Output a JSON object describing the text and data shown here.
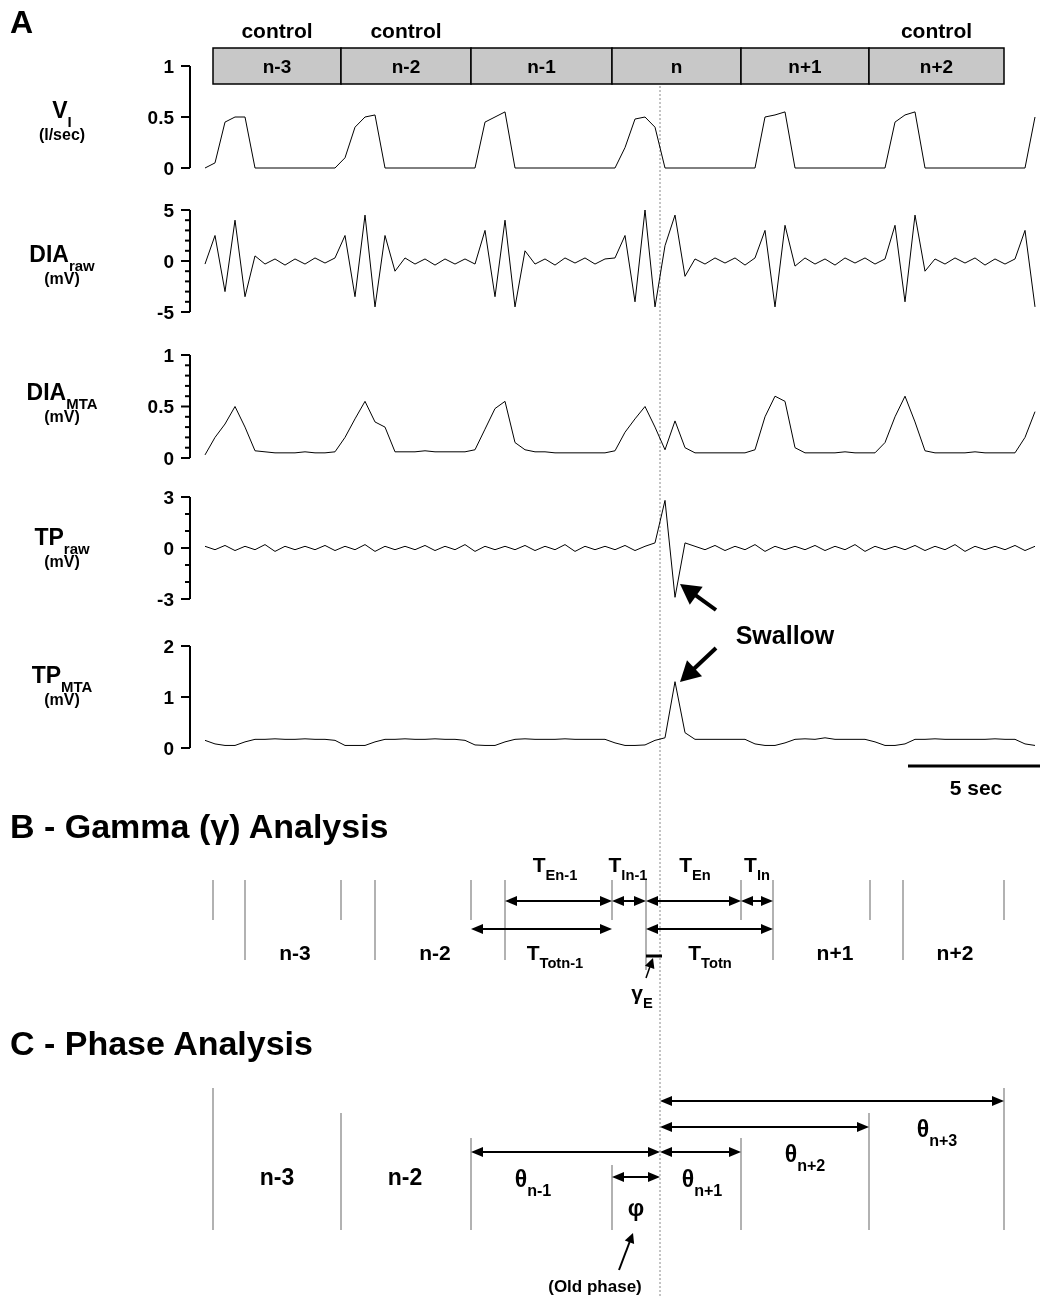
{
  "chart_data": [
    {
      "type": "line",
      "title": "A",
      "ylabel": "V$_{I}$ (l/sec)",
      "tick_labels": "y",
      "color": "#000000",
      "categories": [
        null,
        null,
        null,
        null,
        null,
        null,
        null,
        null,
        null,
        null,
        null,
        null,
        null,
        null,
        null,
        null,
        null,
        null,
        null,
        null,
        null,
        null,
        null,
        null,
        null,
        null,
        null,
        null,
        null,
        null,
        null,
        null,
        null,
        null,
        null,
        null,
        null,
        null,
        null,
        null,
        null,
        null,
        null,
        null,
        null,
        null,
        null,
        null,
        null,
        null,
        null,
        null,
        null,
        null,
        null,
        null,
        null,
        null,
        null,
        null,
        null,
        null,
        null,
        null,
        null,
        null,
        null,
        null,
        null,
        null,
        null,
        null,
        null,
        null,
        null,
        null,
        null,
        null,
        null,
        null,
        null,
        null,
        null,
        null
      ],
      "values": [
        0,
        0.05,
        0.45,
        0.5,
        0.5,
        0,
        0,
        0,
        0,
        0,
        0,
        0,
        0,
        0,
        0.1,
        0.4,
        0.5,
        0.52,
        0,
        0,
        0,
        0,
        0,
        0,
        0,
        0,
        0,
        0,
        0.45,
        0.5,
        0.55,
        0,
        0,
        0,
        0,
        0,
        0,
        0,
        0,
        0,
        0,
        0,
        0.2,
        0.48,
        0.5,
        0.4,
        0,
        0,
        0,
        0,
        0,
        0,
        0,
        0,
        0,
        0,
        0.5,
        0.52,
        0.55,
        0,
        0,
        0,
        0,
        0,
        0,
        0,
        0,
        0,
        0,
        0.45,
        0.52,
        0.55,
        0,
        0,
        0,
        0,
        0,
        0,
        0,
        0,
        0,
        0,
        0,
        0.5
      ],
      "ylim": [
        0,
        1
      ],
      "yticks": [
        0,
        0.5,
        1
      ],
      "annotations": [
        "control",
        "control",
        "control",
        "n-3",
        "n-2",
        "n-1",
        "n",
        "n+1",
        "n+2"
      ]
    },
    {
      "type": "line",
      "ylabel": "DIA$_{raw}$ (mV)",
      "tick_labels": "y",
      "color": "#000000",
      "categories": [
        null,
        null,
        null,
        null,
        null,
        null,
        null,
        null,
        null,
        null,
        null,
        null,
        null,
        null,
        null,
        null,
        null,
        null,
        null,
        null,
        null,
        null,
        null,
        null,
        null,
        null,
        null,
        null,
        null,
        null,
        null,
        null,
        null,
        null,
        null,
        null,
        null,
        null,
        null,
        null,
        null,
        null,
        null,
        null,
        null,
        null,
        null,
        null,
        null,
        null,
        null,
        null,
        null,
        null,
        null,
        null,
        null,
        null,
        null,
        null,
        null,
        null,
        null,
        null,
        null,
        null,
        null,
        null,
        null,
        null,
        null,
        null,
        null,
        null,
        null,
        null,
        null,
        null,
        null,
        null,
        null,
        null,
        null,
        null
      ],
      "values": [
        -0.3,
        2.5,
        -3,
        4,
        -3.5,
        0.5,
        -0.3,
        0.2,
        -0.4,
        0.2,
        -0.3,
        0.3,
        -0.2,
        0.3,
        2.5,
        -3.5,
        4.5,
        -4.5,
        2.5,
        -1,
        0.3,
        -0.3,
        0.2,
        -0.4,
        0.2,
        -0.3,
        0.2,
        -0.3,
        3,
        -3.5,
        4,
        -4.5,
        1,
        -0.3,
        0.2,
        -0.4,
        0.3,
        -0.2,
        0.3,
        -0.3,
        0.2,
        0.3,
        2.5,
        -4,
        5,
        -4.5,
        1.5,
        4.5,
        -1.5,
        0.2,
        -0.3,
        0.3,
        -0.2,
        0.3,
        -0.4,
        0.3,
        3,
        -4.5,
        3.5,
        -0.5,
        0.3,
        -0.3,
        0.2,
        -0.4,
        0.3,
        -0.2,
        0.3,
        -0.3,
        0.2,
        3.5,
        -4,
        4.5,
        -1,
        0.2,
        -0.3,
        0.3,
        -0.2,
        0.3,
        -0.4,
        0.2,
        -0.3,
        0.2,
        3,
        -4.5
      ],
      "ylim": [
        -5,
        5
      ],
      "yticks": [
        -5,
        {
          "value": -4,
          "label": null
        },
        {
          "value": -3,
          "label": null
        },
        {
          "value": -2,
          "label": null
        },
        {
          "value": -1,
          "label": null
        },
        0,
        {
          "value": 1,
          "label": null
        },
        {
          "value": 2,
          "label": null
        },
        {
          "value": 3,
          "label": null
        },
        {
          "value": 4,
          "label": null
        },
        5
      ]
    },
    {
      "type": "line",
      "ylabel": "DIA$_{MTA}$ (mV)",
      "tick_labels": "y",
      "color": "#000000",
      "categories": [
        null,
        null,
        null,
        null,
        null,
        null,
        null,
        null,
        null,
        null,
        null,
        null,
        null,
        null,
        null,
        null,
        null,
        null,
        null,
        null,
        null,
        null,
        null,
        null,
        null,
        null,
        null,
        null,
        null,
        null,
        null,
        null,
        null,
        null,
        null,
        null,
        null,
        null,
        null,
        null,
        null,
        null,
        null,
        null,
        null,
        null,
        null,
        null,
        null,
        null,
        null,
        null,
        null,
        null,
        null,
        null,
        null,
        null,
        null,
        null,
        null,
        null,
        null,
        null,
        null,
        null,
        null,
        null,
        null,
        null,
        null,
        null,
        null,
        null,
        null,
        null,
        null,
        null,
        null,
        null,
        null,
        null,
        null,
        null
      ],
      "values": [
        0.03,
        0.2,
        0.33,
        0.5,
        0.3,
        0.07,
        0.06,
        0.05,
        0.05,
        0.05,
        0.06,
        0.05,
        0.05,
        0.06,
        0.2,
        0.38,
        0.55,
        0.35,
        0.3,
        0.06,
        0.06,
        0.06,
        0.07,
        0.06,
        0.06,
        0.06,
        0.06,
        0.08,
        0.28,
        0.48,
        0.55,
        0.15,
        0.08,
        0.06,
        0.06,
        0.05,
        0.05,
        0.05,
        0.05,
        0.05,
        0.05,
        0.07,
        0.25,
        0.38,
        0.5,
        0.3,
        0.08,
        0.36,
        0.1,
        0.05,
        0.05,
        0.05,
        0.05,
        0.05,
        0.05,
        0.08,
        0.4,
        0.6,
        0.55,
        0.1,
        0.05,
        0.05,
        0.05,
        0.05,
        0.06,
        0.05,
        0.05,
        0.05,
        0.15,
        0.4,
        0.6,
        0.35,
        0.07,
        0.05,
        0.05,
        0.05,
        0.05,
        0.06,
        0.05,
        0.05,
        0.05,
        0.05,
        0.2,
        0.45
      ],
      "ylim": [
        0,
        1
      ],
      "yticks": [
        0,
        {
          "value": 0.1,
          "label": null
        },
        {
          "value": 0.2,
          "label": null
        },
        {
          "value": 0.3,
          "label": null
        },
        {
          "value": 0.4,
          "label": null
        },
        0.5,
        {
          "value": 0.6,
          "label": null
        },
        {
          "value": 0.7,
          "label": null
        },
        {
          "value": 0.8,
          "label": null
        },
        {
          "value": 0.9,
          "label": null
        },
        1
      ]
    },
    {
      "type": "line",
      "ylabel": "TP$_{raw}$ (mV)",
      "tick_labels": "y",
      "color": "#000000",
      "categories": [
        null,
        null,
        null,
        null,
        null,
        null,
        null,
        null,
        null,
        null,
        null,
        null,
        null,
        null,
        null,
        null,
        null,
        null,
        null,
        null,
        null,
        null,
        null,
        null,
        null,
        null,
        null,
        null,
        null,
        null,
        null,
        null,
        null,
        null,
        null,
        null,
        null,
        null,
        null,
        null,
        null,
        null,
        null,
        null,
        null,
        null,
        null,
        null,
        null,
        null,
        null,
        null,
        null,
        null,
        null,
        null,
        null,
        null,
        null,
        null,
        null,
        null,
        null,
        null,
        null,
        null,
        null,
        null,
        null,
        null,
        null,
        null,
        null,
        null,
        null,
        null,
        null,
        null,
        null,
        null,
        null,
        null,
        null,
        null
      ],
      "values": [
        0.1,
        -0.1,
        0.15,
        -0.15,
        0.1,
        -0.1,
        0.2,
        -0.2,
        0.1,
        -0.1,
        0.1,
        -0.1,
        0.15,
        -0.15,
        0.1,
        -0.1,
        0.2,
        -0.2,
        0.1,
        -0.1,
        0.1,
        -0.1,
        0.15,
        -0.15,
        0.1,
        -0.1,
        0.2,
        -0.2,
        0.1,
        -0.1,
        0.1,
        -0.1,
        0.15,
        -0.15,
        0.1,
        -0.1,
        0.2,
        -0.2,
        0.1,
        -0.1,
        0.1,
        -0.1,
        0.15,
        -0.15,
        0.1,
        0.3,
        2.8,
        -2.9,
        0.3,
        0.1,
        -0.1,
        0.15,
        -0.15,
        0.1,
        -0.1,
        0.2,
        -0.2,
        0.1,
        -0.1,
        0.1,
        -0.1,
        0.15,
        -0.15,
        0.1,
        -0.1,
        0.2,
        -0.2,
        0.1,
        -0.1,
        0.1,
        -0.1,
        0.15,
        -0.15,
        0.1,
        -0.1,
        0.2,
        -0.2,
        0.1,
        -0.1,
        0.1,
        -0.1,
        0.15,
        -0.15,
        0.1
      ],
      "ylim": [
        -3,
        3
      ],
      "yticks": [
        -3,
        {
          "value": -2,
          "label": null
        },
        {
          "value": -1,
          "label": null
        },
        0,
        {
          "value": 1,
          "label": null
        },
        {
          "value": 2,
          "label": null
        },
        3
      ],
      "annotations": [
        "Swallow"
      ]
    },
    {
      "type": "line",
      "ylabel": "TP$_{MTA}$ (mV)",
      "tick_labels": "y",
      "color": "#000000",
      "categories": [
        null,
        null,
        null,
        null,
        null,
        null,
        null,
        null,
        null,
        null,
        null,
        null,
        null,
        null,
        null,
        null,
        null,
        null,
        null,
        null,
        null,
        null,
        null,
        null,
        null,
        null,
        null,
        null,
        null,
        null,
        null,
        null,
        null,
        null,
        null,
        null,
        null,
        null,
        null,
        null,
        null,
        null,
        null,
        null,
        null,
        null,
        null,
        null,
        null,
        null,
        null,
        null,
        null,
        null,
        null,
        null,
        null,
        null,
        null,
        null,
        null,
        null,
        null,
        null,
        null,
        null,
        null,
        null,
        null,
        null,
        null,
        null,
        null,
        null,
        null,
        null,
        null,
        null,
        null,
        null,
        null,
        null,
        null,
        null
      ],
      "values": [
        0.15,
        0.08,
        0.05,
        0.05,
        0.12,
        0.17,
        0.17,
        0.18,
        0.17,
        0.17,
        0.18,
        0.17,
        0.17,
        0.15,
        0.05,
        0.05,
        0.05,
        0.12,
        0.17,
        0.17,
        0.18,
        0.17,
        0.17,
        0.18,
        0.17,
        0.17,
        0.15,
        0.06,
        0.05,
        0.05,
        0.12,
        0.17,
        0.18,
        0.17,
        0.17,
        0.17,
        0.18,
        0.17,
        0.17,
        0.17,
        0.17,
        0.1,
        0.05,
        0.05,
        0.06,
        0.15,
        0.2,
        1.3,
        0.3,
        0.17,
        0.17,
        0.17,
        0.17,
        0.17,
        0.17,
        0.08,
        0.05,
        0.05,
        0.1,
        0.17,
        0.18,
        0.17,
        0.2,
        0.17,
        0.17,
        0.17,
        0.17,
        0.12,
        0.05,
        0.05,
        0.08,
        0.17,
        0.17,
        0.18,
        0.17,
        0.17,
        0.17,
        0.17,
        0.17,
        0.18,
        0.17,
        0.17,
        0.08,
        0.05
      ],
      "ylim": [
        0,
        2
      ],
      "yticks": [
        0,
        1,
        2
      ],
      "annotations": [
        "5 sec"
      ]
    },
    {
      "type": "other",
      "title": "B - Gamma (γ) Analysis",
      "annotations": [
        "T$_{En-1}$",
        "T$_{In-1}$",
        "T$_{En}$",
        "T$_{In}$",
        "n-3",
        "n-2",
        "T$_{Totn-1}$",
        "T$_{Totn}$",
        "n+1",
        "n+2",
        "γ$_{E}$"
      ]
    },
    {
      "type": "other",
      "title": "C - Phase Analysis",
      "annotations": [
        "n-3",
        "n-2",
        "θ$_{n-1}$",
        "φ",
        "θ$_{n+1}$",
        "θ$_{n+2}$",
        "θ$_{n+3}$",
        "(Old phase)"
      ]
    }
  ]
}
